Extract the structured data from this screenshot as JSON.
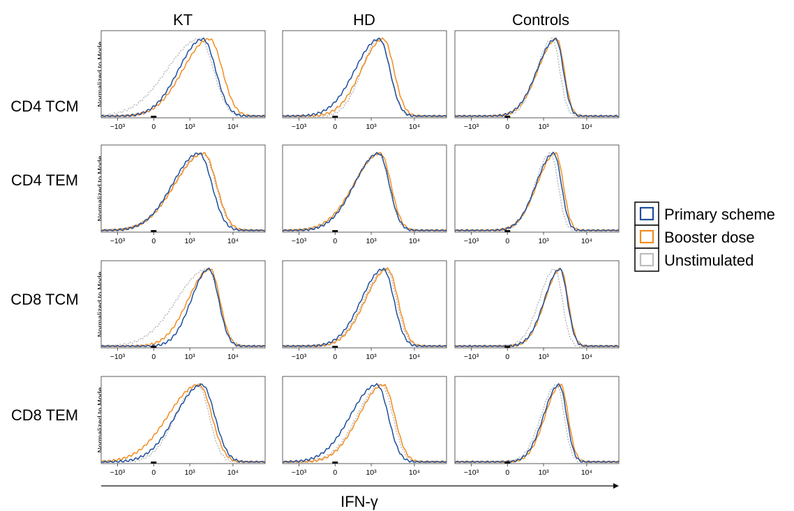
{
  "columns": [
    "KT",
    "HD",
    "Controls"
  ],
  "rows": [
    "CD4 TCM",
    "CD4 TEM",
    "CD8 TCM",
    "CD8 TEM"
  ],
  "ylabel": "Normalized to Mode",
  "xlabel": "IFN-γ",
  "ticks": [
    {
      "value": -1000,
      "label": "−10³"
    },
    {
      "value": 0,
      "label": "0"
    },
    {
      "value": 1000,
      "label": "10³"
    },
    {
      "value": 10000,
      "label": "10⁴"
    }
  ],
  "legend": [
    {
      "label": "Primary scheme",
      "color": "#1f4e9c"
    },
    {
      "label": "Booster dose",
      "color": "#f28c1e"
    },
    {
      "label": "Unstimulated",
      "color": "#bdbdbd"
    }
  ],
  "chart_data": {
    "type": "histogram-grid",
    "x_scale": "biexponential",
    "xlim": [
      -2500,
      50000
    ],
    "series": [
      "Primary scheme",
      "Booster dose",
      "Unstimulated"
    ],
    "panels": [
      {
        "row": "CD4 TCM",
        "col": "KT",
        "peaks": [
          [
            2100,
            0.55,
            0.17
          ],
          [
            3000,
            0.6,
            0.17
          ],
          [
            1800,
            0.75,
            0.18
          ]
        ]
      },
      {
        "row": "CD4 TCM",
        "col": "HD",
        "peaks": [
          [
            1600,
            0.55,
            0.14
          ],
          [
            2000,
            0.5,
            0.14
          ],
          [
            1600,
            0.4,
            0.14
          ]
        ]
      },
      {
        "row": "CD4 TCM",
        "col": "Controls",
        "peaks": [
          [
            2000,
            0.42,
            0.1
          ],
          [
            2100,
            0.42,
            0.1
          ],
          [
            1650,
            0.35,
            0.1
          ]
        ]
      },
      {
        "row": "CD4 TEM",
        "col": "KT",
        "peaks": [
          [
            1700,
            0.6,
            0.17
          ],
          [
            2200,
            0.65,
            0.17
          ],
          [
            2100,
            0.65,
            0.17
          ]
        ]
      },
      {
        "row": "CD4 TEM",
        "col": "HD",
        "peaks": [
          [
            1550,
            0.55,
            0.14
          ],
          [
            1700,
            0.6,
            0.14
          ],
          [
            1500,
            0.55,
            0.14
          ]
        ]
      },
      {
        "row": "CD4 TEM",
        "col": "Controls",
        "peaks": [
          [
            1800,
            0.4,
            0.1
          ],
          [
            2000,
            0.42,
            0.1
          ],
          [
            1500,
            0.35,
            0.1
          ]
        ]
      },
      {
        "row": "CD8 TCM",
        "col": "KT",
        "peaks": [
          [
            2900,
            0.4,
            0.13
          ],
          [
            3100,
            0.5,
            0.13
          ],
          [
            2700,
            0.7,
            0.15
          ]
        ]
      },
      {
        "row": "CD8 TCM",
        "col": "HD",
        "peaks": [
          [
            2000,
            0.5,
            0.14
          ],
          [
            2500,
            0.5,
            0.14
          ],
          [
            2300,
            0.5,
            0.14
          ]
        ]
      },
      {
        "row": "CD8 TCM",
        "col": "Controls",
        "peaks": [
          [
            2500,
            0.35,
            0.1
          ],
          [
            2600,
            0.35,
            0.1
          ],
          [
            1900,
            0.35,
            0.1
          ]
        ]
      },
      {
        "row": "CD8 TEM",
        "col": "KT",
        "peaks": [
          [
            2000,
            0.6,
            0.17
          ],
          [
            1700,
            0.7,
            0.17
          ],
          [
            1600,
            0.5,
            0.15
          ]
        ]
      },
      {
        "row": "CD8 TEM",
        "col": "HD",
        "peaks": [
          [
            1400,
            0.6,
            0.15
          ],
          [
            2000,
            0.55,
            0.15
          ],
          [
            1800,
            0.55,
            0.15
          ]
        ]
      },
      {
        "row": "CD8 TEM",
        "col": "Controls",
        "peaks": [
          [
            2400,
            0.35,
            0.1
          ],
          [
            2600,
            0.35,
            0.1
          ],
          [
            2100,
            0.35,
            0.1
          ]
        ]
      }
    ]
  }
}
